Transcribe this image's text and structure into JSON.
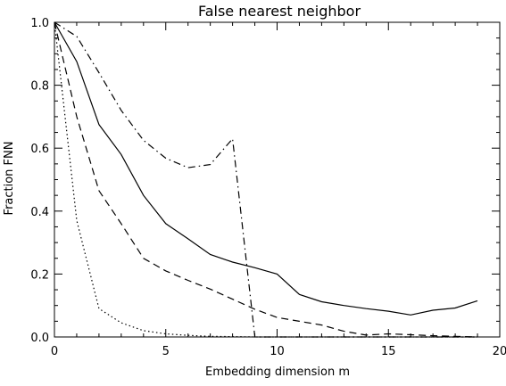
{
  "chart_data": {
    "type": "line",
    "title": "False nearest neighbor",
    "xlabel": "Embedding dimension m",
    "ylabel": "Fraction FNN",
    "xlim": [
      0,
      20
    ],
    "ylim": [
      0,
      1.0
    ],
    "grid": false,
    "legend": "none",
    "x_ticks": [
      0,
      5,
      10,
      15,
      20
    ],
    "x_tick_labels": [
      "0",
      "5",
      "10",
      "15",
      "20"
    ],
    "y_ticks": [
      0.0,
      0.2,
      0.4,
      0.6,
      0.8,
      1.0
    ],
    "y_tick_labels": [
      "0.0",
      "0.2",
      "0.4",
      "0.6",
      "0.8",
      "1.0"
    ],
    "series": [
      {
        "line_style": "solid",
        "color": "#000000",
        "x": [
          0,
          1,
          2,
          3,
          4,
          5,
          6,
          7,
          8,
          9,
          10,
          11,
          12,
          13,
          14,
          15,
          16,
          17,
          18,
          19
        ],
        "y": [
          1.0,
          0.875,
          0.675,
          0.58,
          0.45,
          0.36,
          0.312,
          0.262,
          0.238,
          0.22,
          0.2,
          0.135,
          0.112,
          0.1,
          0.09,
          0.082,
          0.07,
          0.085,
          0.092,
          0.115
        ]
      },
      {
        "line_style": "dashed",
        "color": "#000000",
        "x": [
          0,
          1,
          2,
          3,
          4,
          5,
          6,
          7,
          8,
          9,
          10,
          11,
          12,
          13,
          14,
          15,
          16,
          17,
          18,
          19
        ],
        "y": [
          1.0,
          0.7,
          0.465,
          0.36,
          0.25,
          0.21,
          0.18,
          0.152,
          0.12,
          0.088,
          0.062,
          0.05,
          0.038,
          0.018,
          0.006,
          0.01,
          0.007,
          0.004,
          0.002,
          0.0
        ]
      },
      {
        "line_style": "dotted",
        "color": "#000000",
        "x": [
          0,
          1,
          2,
          3,
          4,
          5,
          6,
          7,
          8,
          9,
          10,
          11,
          12,
          13,
          14,
          15,
          16,
          17,
          18,
          19
        ],
        "y": [
          1.0,
          0.37,
          0.09,
          0.045,
          0.02,
          0.01,
          0.005,
          0.002,
          0.001,
          0.0,
          0.0,
          0.0,
          0.0,
          0.0,
          0.0,
          0.0,
          0.0,
          0.0,
          0.0,
          0.0
        ]
      },
      {
        "line_style": "dash-dot",
        "color": "#000000",
        "x": [
          0,
          1,
          2,
          3,
          4,
          5,
          6,
          7,
          8,
          9,
          10,
          11,
          12,
          13,
          14,
          15,
          16,
          17,
          18,
          19
        ],
        "y": [
          1.0,
          0.955,
          0.84,
          0.72,
          0.625,
          0.568,
          0.538,
          0.548,
          0.63,
          0.0,
          0.0,
          0.0,
          0.0,
          0.0,
          0.0,
          0.0,
          0.0,
          0.0,
          0.0,
          0.0
        ]
      }
    ]
  }
}
